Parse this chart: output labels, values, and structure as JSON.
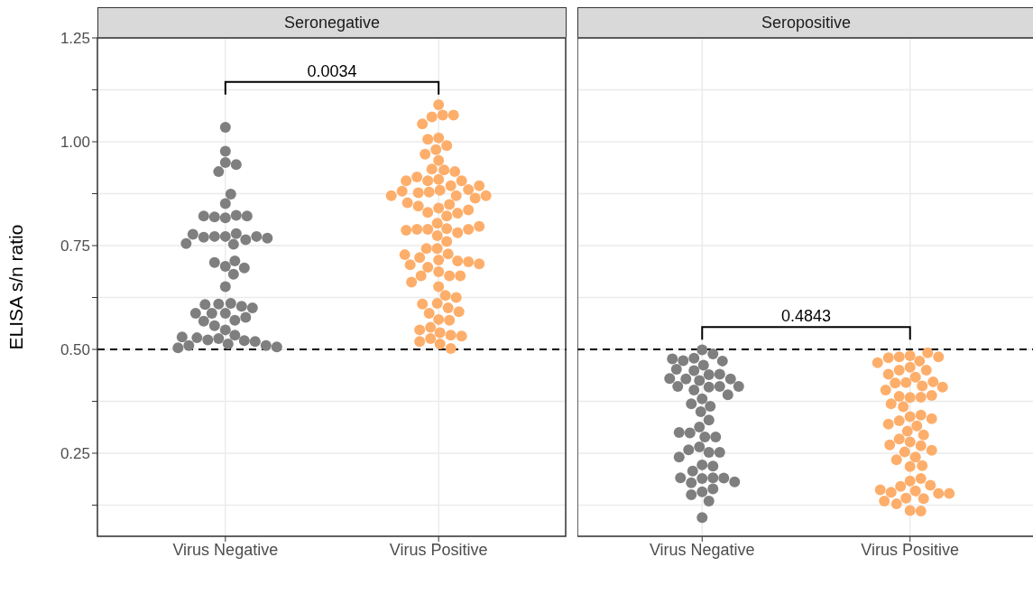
{
  "chart_data": [
    {
      "type": "scatter",
      "title": "Seronegative",
      "ylabel": "ELISA s/n ratio",
      "categories": [
        "Virus Negative",
        "Virus Positive"
      ],
      "ylim": [
        0.05,
        1.25
      ],
      "yticks": [
        {
          "value": 0.125,
          "label": null
        },
        {
          "value": 0.25,
          "label": "0.25"
        },
        {
          "value": 0.375,
          "label": null
        },
        {
          "value": 0.5,
          "label": "0.50"
        },
        {
          "value": 0.625,
          "label": null
        },
        {
          "value": 0.75,
          "label": "0.75"
        },
        {
          "value": 0.875,
          "label": null
        },
        {
          "value": 1.0,
          "label": "1.00"
        },
        {
          "value": 1.125,
          "label": null
        },
        {
          "value": 1.25,
          "label": "1.25"
        }
      ],
      "grid": true,
      "marker": "circle",
      "annotations": [
        "0.0034"
      ],
      "ref_lines": [
        {
          "axis": "y",
          "value": 0.5,
          "color": "#000000",
          "line_style": "dashed"
        }
      ],
      "series": [
        {
          "color": "#7f7f7f",
          "x": [
            "Virus Negative",
            "Virus Negative",
            "Virus Negative",
            "Virus Negative",
            "Virus Negative",
            "Virus Negative",
            "Virus Negative",
            "Virus Negative",
            "Virus Negative",
            "Virus Negative",
            "Virus Negative",
            "Virus Negative",
            "Virus Negative",
            "Virus Negative",
            "Virus Negative",
            "Virus Negative",
            "Virus Negative",
            "Virus Negative",
            "Virus Negative",
            "Virus Negative",
            "Virus Negative",
            "Virus Negative",
            "Virus Negative",
            "Virus Negative",
            "Virus Negative",
            "Virus Negative",
            "Virus Negative",
            "Virus Negative",
            "Virus Negative",
            "Virus Negative",
            "Virus Negative",
            "Virus Negative",
            "Virus Negative",
            "Virus Negative",
            "Virus Negative",
            "Virus Negative",
            "Virus Negative",
            "Virus Negative",
            "Virus Negative",
            "Virus Negative",
            "Virus Negative",
            "Virus Negative",
            "Virus Negative",
            "Virus Negative",
            "Virus Negative",
            "Virus Negative",
            "Virus Negative",
            "Virus Negative",
            "Virus Negative",
            "Virus Negative",
            "Virus Negative",
            "Virus Negative",
            "Virus Negative"
          ],
          "values": [
            1.035,
            0.977,
            0.95,
            0.945,
            0.928,
            0.851,
            0.874,
            0.817,
            0.823,
            0.819,
            0.821,
            0.821,
            0.772,
            0.779,
            0.772,
            0.753,
            0.764,
            0.77,
            0.772,
            0.777,
            0.755,
            0.768,
            0.7,
            0.713,
            0.709,
            0.696,
            0.681,
            0.651,
            0.587,
            0.611,
            0.609,
            0.547,
            0.57,
            0.557,
            0.587,
            0.604,
            0.608,
            0.577,
            0.568,
            0.534,
            0.587,
            0.526,
            0.523,
            0.521,
            0.513,
            0.528,
            0.519,
            0.509,
            0.509,
            0.504,
            0.6,
            0.53,
            0.506
          ]
        },
        {
          "color": "#fdae6b",
          "x": [
            "Virus Positive",
            "Virus Positive",
            "Virus Positive",
            "Virus Positive",
            "Virus Positive",
            "Virus Positive",
            "Virus Positive",
            "Virus Positive",
            "Virus Positive",
            "Virus Positive",
            "Virus Positive",
            "Virus Positive",
            "Virus Positive",
            "Virus Positive",
            "Virus Positive",
            "Virus Positive",
            "Virus Positive",
            "Virus Positive",
            "Virus Positive",
            "Virus Positive",
            "Virus Positive",
            "Virus Positive",
            "Virus Positive",
            "Virus Positive",
            "Virus Positive",
            "Virus Positive",
            "Virus Positive",
            "Virus Positive",
            "Virus Positive",
            "Virus Positive",
            "Virus Positive",
            "Virus Positive",
            "Virus Positive",
            "Virus Positive",
            "Virus Positive",
            "Virus Positive",
            "Virus Positive",
            "Virus Positive",
            "Virus Positive",
            "Virus Positive",
            "Virus Positive",
            "Virus Positive",
            "Virus Positive",
            "Virus Positive",
            "Virus Positive",
            "Virus Positive",
            "Virus Positive",
            "Virus Positive",
            "Virus Positive",
            "Virus Positive",
            "Virus Positive",
            "Virus Positive",
            "Virus Positive",
            "Virus Positive",
            "Virus Positive",
            "Virus Positive",
            "Virus Positive",
            "Virus Positive",
            "Virus Positive",
            "Virus Positive",
            "Virus Positive",
            "Virus Positive",
            "Virus Positive",
            "Virus Positive",
            "Virus Positive",
            "Virus Positive",
            "Virus Positive",
            "Virus Positive",
            "Virus Positive",
            "Virus Positive",
            "Virus Positive",
            "Virus Positive",
            "Virus Positive",
            "Virus Positive",
            "Virus Positive",
            "Virus Positive",
            "Virus Positive",
            "Virus Positive",
            "Virus Positive",
            "Virus Positive",
            "Virus Positive",
            "Virus Positive",
            "Virus Positive"
          ],
          "values": [
            1.089,
            1.064,
            1.06,
            1.064,
            1.043,
            1.009,
            0.991,
            1.006,
            0.981,
            0.97,
            0.955,
            0.932,
            0.934,
            0.928,
            0.909,
            0.906,
            0.915,
            0.906,
            0.906,
            0.883,
            0.879,
            0.894,
            0.87,
            0.877,
            0.885,
            0.881,
            0.864,
            0.894,
            0.87,
            0.87,
            0.84,
            0.821,
            0.849,
            0.83,
            0.845,
            0.828,
            0.853,
            0.836,
            0.804,
            0.791,
            0.789,
            0.781,
            0.789,
            0.774,
            0.789,
            0.787,
            0.796,
            0.76,
            0.743,
            0.743,
            0.715,
            0.73,
            0.721,
            0.687,
            0.713,
            0.711,
            0.677,
            0.704,
            0.728,
            0.698,
            0.706,
            0.677,
            0.677,
            0.651,
            0.63,
            0.611,
            0.6,
            0.572,
            0.57,
            0.587,
            0.609,
            0.625,
            0.591,
            0.553,
            0.54,
            0.534,
            0.547,
            0.526,
            0.532,
            0.519,
            0.513,
            0.502,
            0.662
          ]
        }
      ]
    },
    {
      "type": "scatter",
      "title": "Seropositive",
      "categories": [
        "Virus Negative",
        "Virus Positive"
      ],
      "ylim": [
        0.05,
        1.25
      ],
      "yticks": [
        0.125,
        0.25,
        0.375,
        0.5,
        0.625,
        0.75,
        0.875,
        1.0,
        1.125,
        1.25
      ],
      "tick_labels": "x",
      "grid": true,
      "marker": "circle",
      "annotations": [
        "0.4843"
      ],
      "ref_lines": [
        {
          "axis": "y",
          "value": 0.5,
          "color": "#000000",
          "line_style": "dashed"
        }
      ],
      "series": [
        {
          "color": "#7f7f7f",
          "x": [
            "Virus Negative",
            "Virus Negative",
            "Virus Negative",
            "Virus Negative",
            "Virus Negative",
            "Virus Negative",
            "Virus Negative",
            "Virus Negative",
            "Virus Negative",
            "Virus Negative",
            "Virus Negative",
            "Virus Negative",
            "Virus Negative",
            "Virus Negative",
            "Virus Negative",
            "Virus Negative",
            "Virus Negative",
            "Virus Negative",
            "Virus Negative",
            "Virus Negative",
            "Virus Negative",
            "Virus Negative",
            "Virus Negative",
            "Virus Negative",
            "Virus Negative",
            "Virus Negative",
            "Virus Negative",
            "Virus Negative",
            "Virus Negative",
            "Virus Negative",
            "Virus Negative",
            "Virus Negative",
            "Virus Negative",
            "Virus Negative",
            "Virus Negative",
            "Virus Negative",
            "Virus Negative",
            "Virus Negative",
            "Virus Negative",
            "Virus Negative",
            "Virus Negative",
            "Virus Negative",
            "Virus Negative",
            "Virus Negative",
            "Virus Negative",
            "Virus Negative",
            "Virus Negative",
            "Virus Negative",
            "Virus Negative",
            "Virus Negative"
          ],
          "values": [
            0.499,
            0.489,
            0.479,
            0.473,
            0.472,
            0.477,
            0.462,
            0.449,
            0.439,
            0.44,
            0.452,
            0.425,
            0.429,
            0.429,
            0.43,
            0.409,
            0.411,
            0.411,
            0.411,
            0.402,
            0.391,
            0.381,
            0.363,
            0.369,
            0.35,
            0.33,
            0.313,
            0.289,
            0.299,
            0.289,
            0.3,
            0.265,
            0.252,
            0.258,
            0.252,
            0.241,
            0.222,
            0.219,
            0.207,
            0.189,
            0.191,
            0.179,
            0.19,
            0.191,
            0.181,
            0.157,
            0.164,
            0.15,
            0.135,
            0.095
          ]
        },
        {
          "color": "#fdae6b",
          "x": [
            "Virus Positive",
            "Virus Positive",
            "Virus Positive",
            "Virus Positive",
            "Virus Positive",
            "Virus Positive",
            "Virus Positive",
            "Virus Positive",
            "Virus Positive",
            "Virus Positive",
            "Virus Positive",
            "Virus Positive",
            "Virus Positive",
            "Virus Positive",
            "Virus Positive",
            "Virus Positive",
            "Virus Positive",
            "Virus Positive",
            "Virus Positive",
            "Virus Positive",
            "Virus Positive",
            "Virus Positive",
            "Virus Positive",
            "Virus Positive",
            "Virus Positive",
            "Virus Positive",
            "Virus Positive",
            "Virus Positive",
            "Virus Positive",
            "Virus Positive",
            "Virus Positive",
            "Virus Positive",
            "Virus Positive",
            "Virus Positive",
            "Virus Positive",
            "Virus Positive",
            "Virus Positive",
            "Virus Positive",
            "Virus Positive",
            "Virus Positive",
            "Virus Positive",
            "Virus Positive",
            "Virus Positive",
            "Virus Positive",
            "Virus Positive",
            "Virus Positive",
            "Virus Positive",
            "Virus Positive",
            "Virus Positive",
            "Virus Positive",
            "Virus Positive",
            "Virus Positive",
            "Virus Positive",
            "Virus Positive",
            "Virus Positive",
            "Virus Positive",
            "Virus Positive"
          ],
          "values": [
            0.485,
            0.472,
            0.482,
            0.492,
            0.48,
            0.482,
            0.468,
            0.457,
            0.45,
            0.45,
            0.44,
            0.433,
            0.42,
            0.412,
            0.422,
            0.419,
            0.402,
            0.409,
            0.384,
            0.387,
            0.385,
            0.389,
            0.362,
            0.369,
            0.338,
            0.342,
            0.328,
            0.333,
            0.316,
            0.32,
            0.303,
            0.294,
            0.277,
            0.284,
            0.268,
            0.27,
            0.253,
            0.257,
            0.241,
            0.234,
            0.218,
            0.22,
            0.183,
            0.189,
            0.17,
            0.173,
            0.159,
            0.156,
            0.162,
            0.153,
            0.142,
            0.141,
            0.153,
            0.135,
            0.128,
            0.112,
            0.111
          ]
        }
      ]
    }
  ]
}
